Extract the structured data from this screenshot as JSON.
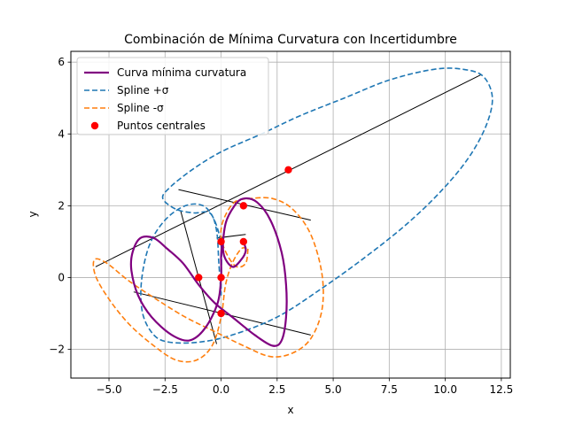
{
  "chart_data": {
    "type": "line",
    "title": "Combinación de Mínima Curvatura con Incertidumbre",
    "xlabel": "x",
    "ylabel": "y",
    "xlim": [
      -6.7,
      12.9
    ],
    "ylim": [
      -2.8,
      6.3
    ],
    "xticks": [
      -5.0,
      -2.5,
      0.0,
      2.5,
      5.0,
      7.5,
      10.0,
      12.5
    ],
    "xtick_labels": [
      "−5.0",
      "−2.5",
      "0.0",
      "2.5",
      "5.0",
      "7.5",
      "10.0",
      "12.5"
    ],
    "yticks": [
      -2,
      0,
      2,
      4,
      6
    ],
    "ytick_labels": [
      "−2",
      "0",
      "2",
      "4",
      "6"
    ],
    "grid": true,
    "legend_position": "top-left",
    "legend": [
      {
        "label": "Curva mínima curvatura",
        "style": "solid",
        "color": "#800080"
      },
      {
        "label": "Spline +σ",
        "style": "dashed",
        "color": "#1f77b4"
      },
      {
        "label": "Spline -σ",
        "style": "dashed",
        "color": "#ff7f0e"
      },
      {
        "label": "Puntos centrales",
        "style": "marker",
        "color": "#ff0000"
      }
    ],
    "series": [
      {
        "name": "Curva mínima curvatura",
        "color": "#800080",
        "points": [
          [
            1.0,
            1.0
          ],
          [
            1.1,
            0.75
          ],
          [
            0.9,
            0.5
          ],
          [
            0.5,
            0.3
          ],
          [
            0.1,
            0.7
          ],
          [
            0.2,
            1.5
          ],
          [
            0.6,
            2.0
          ],
          [
            1.0,
            2.2
          ],
          [
            1.6,
            2.1
          ],
          [
            2.2,
            1.6
          ],
          [
            2.7,
            0.7
          ],
          [
            2.9,
            -0.2
          ],
          [
            2.9,
            -1.1
          ],
          [
            2.7,
            -1.75
          ],
          [
            2.3,
            -1.9
          ],
          [
            1.5,
            -1.6
          ],
          [
            0.5,
            -1.1
          ],
          [
            -0.3,
            -0.7
          ],
          [
            -1.0,
            -0.2
          ],
          [
            -1.7,
            0.4
          ],
          [
            -2.4,
            0.8
          ],
          [
            -3.0,
            1.1
          ],
          [
            -3.6,
            1.1
          ],
          [
            -3.95,
            0.7
          ],
          [
            -4.0,
            0.2
          ],
          [
            -3.7,
            -0.5
          ],
          [
            -3.1,
            -1.1
          ],
          [
            -2.2,
            -1.6
          ],
          [
            -1.4,
            -1.75
          ],
          [
            -0.7,
            -1.4
          ],
          [
            -0.15,
            -0.7
          ],
          [
            0.0,
            0.0
          ],
          [
            0.0,
            0.6
          ],
          [
            0.05,
            1.0
          ]
        ]
      },
      {
        "name": "Spline +σ",
        "color": "#1f77b4",
        "points": [
          [
            0.0,
            -0.5
          ],
          [
            -0.1,
            0.4
          ],
          [
            -0.2,
            1.3
          ],
          [
            -0.5,
            1.8
          ],
          [
            -1.2,
            1.8
          ],
          [
            -2.0,
            1.9
          ],
          [
            -2.6,
            2.2
          ],
          [
            -2.3,
            2.5
          ],
          [
            -1.3,
            3.0
          ],
          [
            0.0,
            3.5
          ],
          [
            1.8,
            4.0
          ],
          [
            3.5,
            4.5
          ],
          [
            5.5,
            5.0
          ],
          [
            7.5,
            5.5
          ],
          [
            9.5,
            5.8
          ],
          [
            10.8,
            5.8
          ],
          [
            11.7,
            5.6
          ],
          [
            12.1,
            5.0
          ],
          [
            11.8,
            4.2
          ],
          [
            11.0,
            3.3
          ],
          [
            9.8,
            2.4
          ],
          [
            8.3,
            1.5
          ],
          [
            6.5,
            0.6
          ],
          [
            4.5,
            -0.3
          ],
          [
            2.5,
            -1.1
          ],
          [
            0.5,
            -1.6
          ],
          [
            -1.0,
            -1.8
          ],
          [
            -2.3,
            -1.8
          ],
          [
            -3.0,
            -1.6
          ],
          [
            -3.5,
            -1.0
          ],
          [
            -3.55,
            -0.1
          ],
          [
            -3.2,
            0.9
          ],
          [
            -2.5,
            1.6
          ],
          [
            -1.6,
            2.0
          ],
          [
            -0.8,
            2.0
          ],
          [
            -0.3,
            1.6
          ],
          [
            0.0,
            0.9
          ],
          [
            0.0,
            0.0
          ],
          [
            0.0,
            -0.5
          ]
        ]
      },
      {
        "name": "Spline -σ",
        "color": "#ff7f0e",
        "points": [
          [
            1.2,
            0.8
          ],
          [
            1.1,
            0.4
          ],
          [
            0.7,
            0.3
          ],
          [
            0.3,
            0.6
          ],
          [
            0.0,
            1.1
          ],
          [
            0.1,
            1.6
          ],
          [
            0.6,
            2.1
          ],
          [
            1.3,
            2.2
          ],
          [
            2.3,
            2.2
          ],
          [
            3.2,
            1.9
          ],
          [
            4.0,
            1.2
          ],
          [
            4.5,
            0.1
          ],
          [
            4.5,
            -0.9
          ],
          [
            4.0,
            -1.7
          ],
          [
            3.2,
            -2.1
          ],
          [
            2.2,
            -2.2
          ],
          [
            1.0,
            -1.9
          ],
          [
            -0.3,
            -1.5
          ],
          [
            -1.6,
            -1.1
          ],
          [
            -2.9,
            -0.6
          ],
          [
            -4.1,
            -0.1
          ],
          [
            -5.1,
            0.4
          ],
          [
            -5.65,
            0.5
          ],
          [
            -5.6,
            0.05
          ],
          [
            -5.0,
            -0.6
          ],
          [
            -4.1,
            -1.3
          ],
          [
            -3.0,
            -1.9
          ],
          [
            -2.0,
            -2.3
          ],
          [
            -1.1,
            -2.3
          ],
          [
            -0.4,
            -1.9
          ],
          [
            0.0,
            -1.1
          ],
          [
            0.2,
            -0.2
          ],
          [
            0.5,
            0.4
          ],
          [
            0.9,
            0.8
          ],
          [
            1.2,
            0.8
          ]
        ]
      },
      {
        "name": "Puntos centrales",
        "color": "#ff0000",
        "points": [
          [
            0.0,
            1.0
          ],
          [
            1.0,
            1.0
          ],
          [
            3.0,
            3.0
          ],
          [
            1.0,
            2.0
          ],
          [
            0.0,
            0.0
          ],
          [
            -1.0,
            0.0
          ],
          [
            0.0,
            -1.0
          ]
        ]
      }
    ],
    "segments": [
      [
        [
          -5.6,
          0.3
        ],
        [
          11.6,
          5.65
        ]
      ],
      [
        [
          -1.9,
          2.45
        ],
        [
          4.0,
          1.6
        ]
      ],
      [
        [
          -3.9,
          -0.4
        ],
        [
          4.0,
          -1.6
        ]
      ],
      [
        [
          -1.8,
          1.85
        ],
        [
          -0.2,
          -1.85
        ]
      ],
      [
        [
          -0.2,
          1.1
        ],
        [
          1.1,
          1.2
        ]
      ]
    ]
  }
}
